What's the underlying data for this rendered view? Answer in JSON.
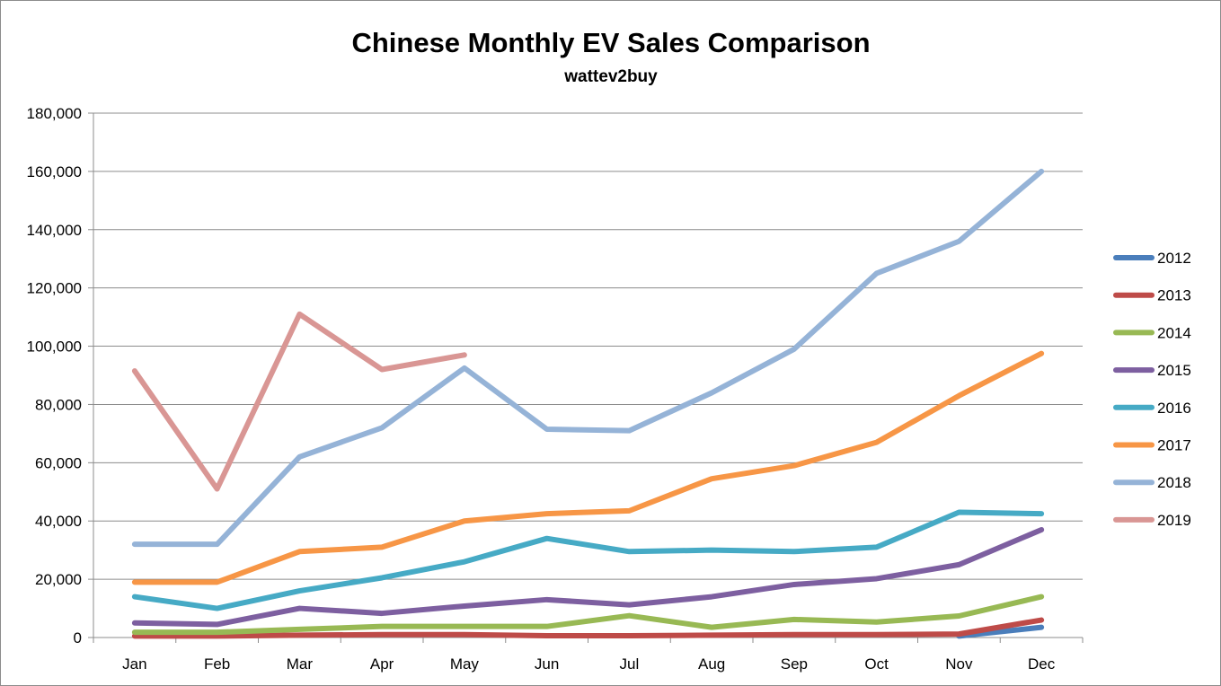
{
  "chart_data": {
    "type": "line",
    "title": "Chinese Monthly EV Sales Comparison",
    "subtitle": "wattev2buy",
    "xlabel": "",
    "ylabel": "",
    "categories": [
      "Jan",
      "Feb",
      "Mar",
      "Apr",
      "May",
      "Jun",
      "Jul",
      "Aug",
      "Sep",
      "Oct",
      "Nov",
      "Dec"
    ],
    "ylim": [
      0,
      180000
    ],
    "yticks": [
      0,
      20000,
      40000,
      60000,
      80000,
      100000,
      120000,
      140000,
      160000,
      180000
    ],
    "ytick_labels": [
      "0",
      "20,000",
      "40,000",
      "60,000",
      "80,000",
      "100,000",
      "120,000",
      "140,000",
      "160,000",
      "180,000"
    ],
    "grid": true,
    "legend_position": "right",
    "series": [
      {
        "name": "2012",
        "color": "#4a7ebb",
        "values": [
          null,
          null,
          null,
          null,
          null,
          null,
          null,
          null,
          null,
          null,
          500,
          3500
        ]
      },
      {
        "name": "2013",
        "color": "#be4b48",
        "values": [
          500,
          500,
          800,
          1000,
          1000,
          600,
          600,
          800,
          1000,
          1000,
          1200,
          6000
        ]
      },
      {
        "name": "2014",
        "color": "#98b954",
        "values": [
          1800,
          1800,
          2800,
          3800,
          3800,
          3800,
          7500,
          3500,
          6200,
          5300,
          7400,
          14000
        ]
      },
      {
        "name": "2015",
        "color": "#7d5fa0",
        "values": [
          5000,
          4500,
          10000,
          8300,
          10800,
          13000,
          11200,
          14000,
          18200,
          20200,
          25000,
          37000
        ]
      },
      {
        "name": "2016",
        "color": "#46aac5",
        "values": [
          14000,
          10000,
          16000,
          20500,
          26000,
          34000,
          29500,
          30000,
          29500,
          31000,
          43000,
          42500
        ]
      },
      {
        "name": "2017",
        "color": "#f79646",
        "values": [
          19000,
          19000,
          29500,
          31000,
          40000,
          42500,
          43500,
          54500,
          59000,
          67000,
          83000,
          97500
        ]
      },
      {
        "name": "2018",
        "color": "#95b3d7",
        "values": [
          32000,
          32000,
          62000,
          72000,
          92500,
          71500,
          71000,
          84000,
          99000,
          125000,
          136000,
          160000
        ]
      },
      {
        "name": "2019",
        "color": "#d99694",
        "values": [
          91500,
          51000,
          111000,
          92000,
          97000,
          null,
          null,
          null,
          null,
          null,
          null,
          null
        ]
      }
    ]
  }
}
